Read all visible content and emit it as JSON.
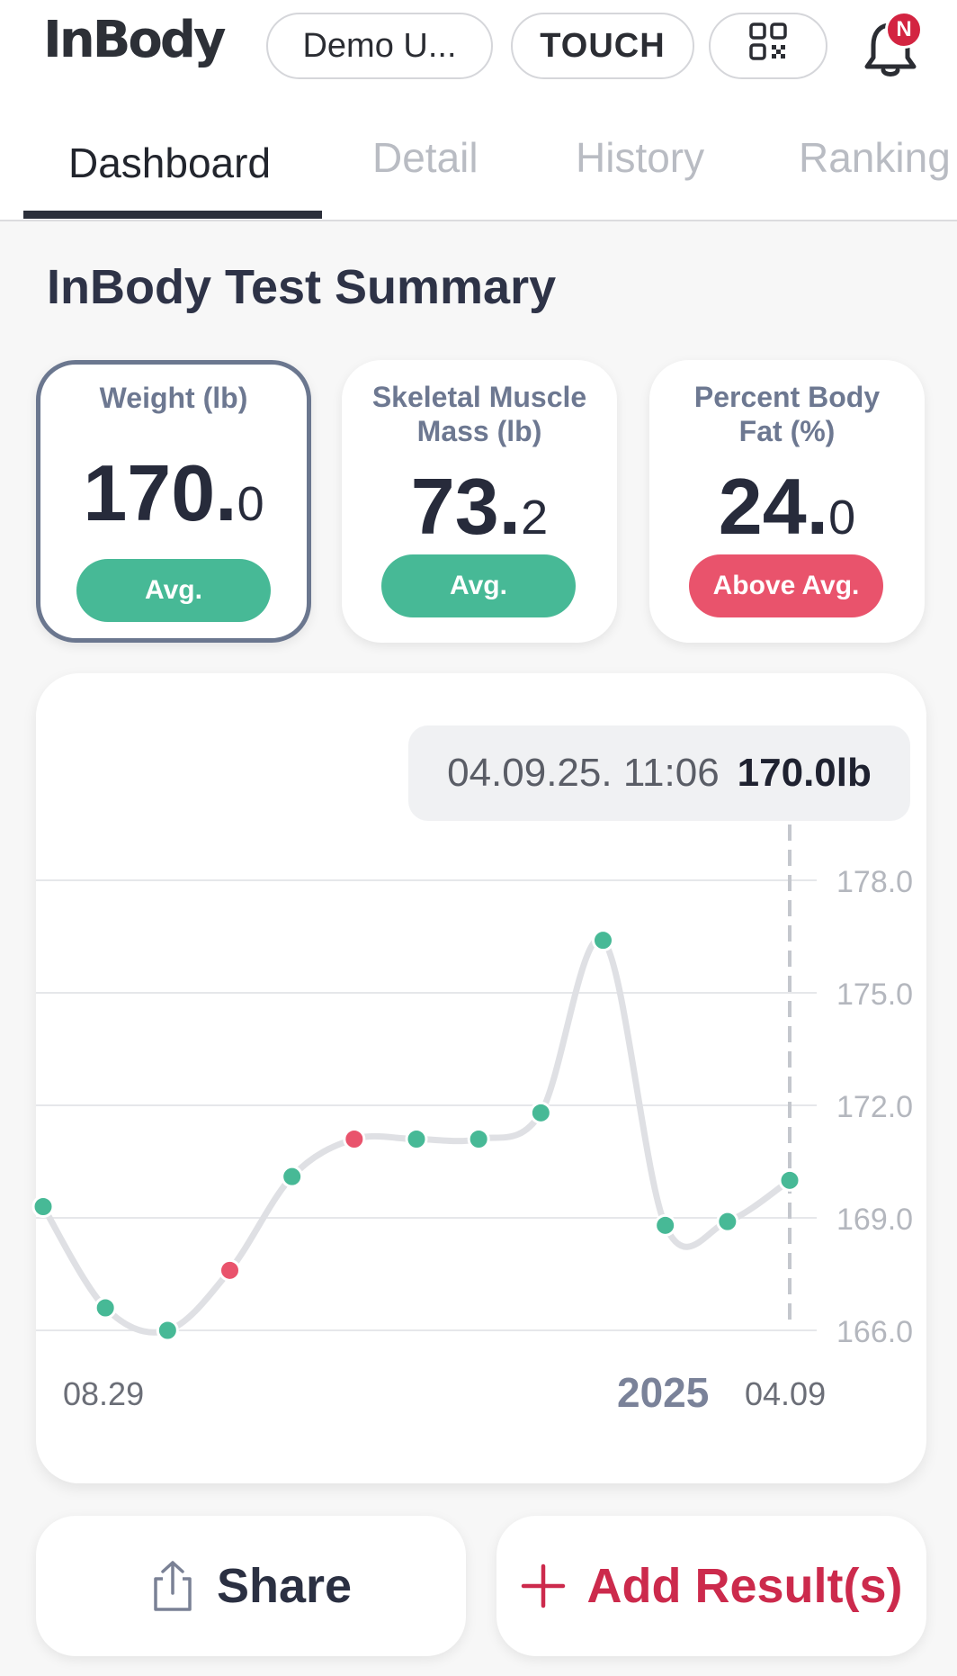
{
  "header": {
    "logo": "InBody",
    "user_pill": "Demo U...",
    "touch_label": "TOUCH",
    "notification_badge": "N",
    "icons": [
      "qr-code-icon",
      "bell-icon"
    ]
  },
  "tabs": [
    {
      "label": "Dashboard",
      "active": true
    },
    {
      "label": "Detail",
      "active": false
    },
    {
      "label": "History",
      "active": false
    },
    {
      "label": "Ranking",
      "active": false
    }
  ],
  "summary": {
    "title": "InBody Test Summary",
    "cards": [
      {
        "label_line1": "Weight (lb)",
        "label_line2": "",
        "value_int": "170.",
        "value_dec": "0",
        "status": "Avg.",
        "status_color": "#47b996",
        "selected": true
      },
      {
        "label_line1": "Skeletal Muscle",
        "label_line2": "Mass (lb)",
        "value_int": "73.",
        "value_dec": "2",
        "status": "Avg.",
        "status_color": "#47b996",
        "selected": false
      },
      {
        "label_line1": "Percent Body",
        "label_line2": "Fat (%)",
        "value_int": "24.",
        "value_dec": "0",
        "status": "Above Avg.",
        "status_color": "#e9536c",
        "selected": false
      }
    ]
  },
  "tooltip": {
    "datetime": "04.09.25. 11:06",
    "value": "170.0lb"
  },
  "chart_data": {
    "type": "line",
    "title": "",
    "ylabel": "",
    "xlabel": "",
    "ylim": [
      166.0,
      178.0
    ],
    "yticks": [
      "178.0",
      "175.0",
      "172.0",
      "169.0",
      "166.0"
    ],
    "x_start_label": "08.29",
    "x_end_label": "04.09",
    "year_label": "2025",
    "values": [
      169.3,
      166.6,
      166.0,
      167.6,
      170.1,
      171.1,
      171.1,
      171.1,
      171.8,
      176.4,
      168.8,
      168.9,
      170.0
    ],
    "point_status": [
      "avg",
      "avg",
      "avg",
      "above",
      "avg",
      "above",
      "avg",
      "avg",
      "avg",
      "avg",
      "avg",
      "avg",
      "avg"
    ],
    "colors": {
      "avg": "#47b996",
      "above": "#e9536c",
      "line": "#dfe0e4",
      "grid": "#e6e7ea"
    }
  },
  "actions": {
    "share_label": "Share",
    "add_label": "Add Result(s)"
  }
}
